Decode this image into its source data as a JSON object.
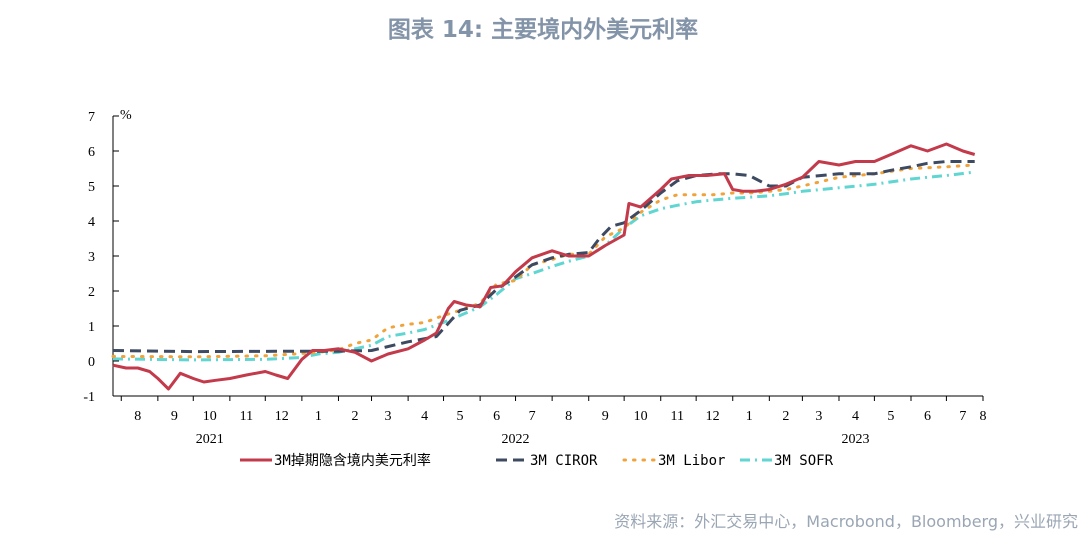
{
  "chart_data": {
    "type": "line",
    "title": "图表 14: 主要境内外美元利率",
    "ylabel": "%",
    "ylim": [
      -1,
      7
    ],
    "yticks": [
      -1,
      0,
      1,
      2,
      3,
      4,
      5,
      6,
      7
    ],
    "x_range": [
      "2021-07-25",
      "2023-08-01"
    ],
    "x_tick_labels": [
      "8",
      "9",
      "10",
      "11",
      "12",
      "1",
      "2",
      "3",
      "4",
      "5",
      "6",
      "7",
      "8",
      "9",
      "10",
      "11",
      "12",
      "1",
      "2",
      "3",
      "4",
      "5",
      "6",
      "7",
      "8"
    ],
    "year_labels": [
      "2021",
      "2022",
      "2023"
    ],
    "grid": false,
    "legend_position": "bottom",
    "series": [
      {
        "name": "3M掉期隐含境内美元利率",
        "style": "solid",
        "color": "#c33a4b",
        "points": [
          [
            "2021-07-25",
            -0.12
          ],
          [
            "2021-08-05",
            -0.2
          ],
          [
            "2021-08-15",
            -0.2
          ],
          [
            "2021-08-25",
            -0.3
          ],
          [
            "2021-09-01",
            -0.5
          ],
          [
            "2021-09-10",
            -0.8
          ],
          [
            "2021-09-20",
            -0.35
          ],
          [
            "2021-10-01",
            -0.5
          ],
          [
            "2021-10-10",
            -0.6
          ],
          [
            "2021-10-20",
            -0.55
          ],
          [
            "2021-11-01",
            -0.5
          ],
          [
            "2021-11-15",
            -0.4
          ],
          [
            "2021-12-01",
            -0.3
          ],
          [
            "2021-12-10",
            -0.4
          ],
          [
            "2021-12-20",
            -0.5
          ],
          [
            "2022-01-01",
            0.05
          ],
          [
            "2022-01-10",
            0.3
          ],
          [
            "2022-01-20",
            0.3
          ],
          [
            "2022-02-01",
            0.35
          ],
          [
            "2022-02-15",
            0.25
          ],
          [
            "2022-03-01",
            0.0
          ],
          [
            "2022-03-15",
            0.2
          ],
          [
            "2022-04-01",
            0.35
          ],
          [
            "2022-04-15",
            0.6
          ],
          [
            "2022-04-25",
            0.8
          ],
          [
            "2022-05-05",
            1.5
          ],
          [
            "2022-05-10",
            1.7
          ],
          [
            "2022-05-20",
            1.6
          ],
          [
            "2022-06-01",
            1.55
          ],
          [
            "2022-06-10",
            2.1
          ],
          [
            "2022-06-20",
            2.15
          ],
          [
            "2022-07-01",
            2.55
          ],
          [
            "2022-07-15",
            2.95
          ],
          [
            "2022-08-01",
            3.15
          ],
          [
            "2022-08-15",
            3.0
          ],
          [
            "2022-09-01",
            3.0
          ],
          [
            "2022-09-15",
            3.3
          ],
          [
            "2022-10-01",
            3.6
          ],
          [
            "2022-10-05",
            4.5
          ],
          [
            "2022-10-15",
            4.4
          ],
          [
            "2022-11-01",
            4.9
          ],
          [
            "2022-11-10",
            5.2
          ],
          [
            "2022-11-25",
            5.3
          ],
          [
            "2022-12-10",
            5.3
          ],
          [
            "2022-12-25",
            5.35
          ],
          [
            "2023-01-01",
            4.9
          ],
          [
            "2023-01-10",
            4.85
          ],
          [
            "2023-01-20",
            4.85
          ],
          [
            "2023-02-01",
            4.9
          ],
          [
            "2023-02-15",
            5.05
          ],
          [
            "2023-03-01",
            5.25
          ],
          [
            "2023-03-15",
            5.7
          ],
          [
            "2023-04-01",
            5.6
          ],
          [
            "2023-04-15",
            5.7
          ],
          [
            "2023-05-01",
            5.7
          ],
          [
            "2023-05-15",
            5.9
          ],
          [
            "2023-06-01",
            6.15
          ],
          [
            "2023-06-15",
            6.0
          ],
          [
            "2023-07-01",
            6.2
          ],
          [
            "2023-07-15",
            6.0
          ],
          [
            "2023-07-25",
            5.9
          ]
        ]
      },
      {
        "name": "3M CIROR",
        "style": "dash",
        "color": "#3e4a61",
        "points": [
          [
            "2021-07-25",
            0.3
          ],
          [
            "2021-10-01",
            0.27
          ],
          [
            "2021-12-31",
            0.28
          ],
          [
            "2022-02-01",
            0.28
          ],
          [
            "2022-03-01",
            0.3
          ],
          [
            "2022-04-01",
            0.55
          ],
          [
            "2022-04-25",
            0.7
          ],
          [
            "2022-05-15",
            1.45
          ],
          [
            "2022-06-01",
            1.6
          ],
          [
            "2022-06-15",
            2.05
          ],
          [
            "2022-07-01",
            2.4
          ],
          [
            "2022-07-15",
            2.75
          ],
          [
            "2022-08-01",
            2.95
          ],
          [
            "2022-08-15",
            3.05
          ],
          [
            "2022-09-01",
            3.1
          ],
          [
            "2022-09-10",
            3.5
          ],
          [
            "2022-09-20",
            3.85
          ],
          [
            "2022-10-01",
            3.95
          ],
          [
            "2022-10-15",
            4.3
          ],
          [
            "2022-11-01",
            4.8
          ],
          [
            "2022-11-15",
            5.15
          ],
          [
            "2022-12-01",
            5.3
          ],
          [
            "2022-12-20",
            5.35
          ],
          [
            "2023-01-01",
            5.35
          ],
          [
            "2023-01-15",
            5.3
          ],
          [
            "2023-02-01",
            5.0
          ],
          [
            "2023-02-15",
            5.0
          ],
          [
            "2023-03-01",
            5.25
          ],
          [
            "2023-04-01",
            5.35
          ],
          [
            "2023-05-01",
            5.35
          ],
          [
            "2023-05-15",
            5.45
          ],
          [
            "2023-06-01",
            5.55
          ],
          [
            "2023-06-15",
            5.65
          ],
          [
            "2023-07-01",
            5.7
          ],
          [
            "2023-07-25",
            5.7
          ]
        ]
      },
      {
        "name": "3M Libor",
        "style": "dot",
        "color": "#f0a33a",
        "points": [
          [
            "2021-07-25",
            0.13
          ],
          [
            "2021-10-01",
            0.12
          ],
          [
            "2021-12-01",
            0.15
          ],
          [
            "2021-12-31",
            0.21
          ],
          [
            "2022-01-15",
            0.25
          ],
          [
            "2022-02-01",
            0.32
          ],
          [
            "2022-02-15",
            0.5
          ],
          [
            "2022-03-01",
            0.6
          ],
          [
            "2022-03-15",
            0.95
          ],
          [
            "2022-04-01",
            1.05
          ],
          [
            "2022-04-15",
            1.1
          ],
          [
            "2022-05-01",
            1.3
          ],
          [
            "2022-05-15",
            1.45
          ],
          [
            "2022-06-01",
            1.65
          ],
          [
            "2022-06-15",
            2.2
          ],
          [
            "2022-07-01",
            2.3
          ],
          [
            "2022-07-15",
            2.75
          ],
          [
            "2022-08-01",
            2.9
          ],
          [
            "2022-08-15",
            3.05
          ],
          [
            "2022-09-01",
            3.05
          ],
          [
            "2022-09-15",
            3.55
          ],
          [
            "2022-10-01",
            3.8
          ],
          [
            "2022-10-15",
            4.25
          ],
          [
            "2022-11-01",
            4.6
          ],
          [
            "2022-11-15",
            4.75
          ],
          [
            "2022-12-01",
            4.75
          ],
          [
            "2022-12-15",
            4.75
          ],
          [
            "2023-01-01",
            4.8
          ],
          [
            "2023-01-15",
            4.8
          ],
          [
            "2023-02-01",
            4.85
          ],
          [
            "2023-02-15",
            4.9
          ],
          [
            "2023-03-01",
            5.0
          ],
          [
            "2023-04-01",
            5.25
          ],
          [
            "2023-05-01",
            5.35
          ],
          [
            "2023-06-01",
            5.5
          ],
          [
            "2023-07-01",
            5.55
          ],
          [
            "2023-07-25",
            5.6
          ]
        ]
      },
      {
        "name": "3M SOFR",
        "style": "dashdot",
        "color": "#5fd6d1",
        "points": [
          [
            "2021-07-25",
            0.06
          ],
          [
            "2021-10-01",
            0.03
          ],
          [
            "2021-12-01",
            0.05
          ],
          [
            "2021-12-31",
            0.1
          ],
          [
            "2022-01-15",
            0.2
          ],
          [
            "2022-02-01",
            0.25
          ],
          [
            "2022-02-15",
            0.35
          ],
          [
            "2022-03-01",
            0.45
          ],
          [
            "2022-03-15",
            0.7
          ],
          [
            "2022-04-01",
            0.8
          ],
          [
            "2022-04-15",
            0.9
          ],
          [
            "2022-05-01",
            1.1
          ],
          [
            "2022-05-15",
            1.3
          ],
          [
            "2022-06-01",
            1.55
          ],
          [
            "2022-06-15",
            1.9
          ],
          [
            "2022-07-01",
            2.35
          ],
          [
            "2022-07-15",
            2.5
          ],
          [
            "2022-08-01",
            2.7
          ],
          [
            "2022-08-15",
            2.85
          ],
          [
            "2022-09-01",
            3.0
          ],
          [
            "2022-09-15",
            3.3
          ],
          [
            "2022-10-01",
            3.8
          ],
          [
            "2022-10-15",
            4.15
          ],
          [
            "2022-11-01",
            4.35
          ],
          [
            "2022-11-15",
            4.45
          ],
          [
            "2022-12-01",
            4.55
          ],
          [
            "2022-12-15",
            4.6
          ],
          [
            "2023-01-01",
            4.65
          ],
          [
            "2023-01-15",
            4.68
          ],
          [
            "2023-02-01",
            4.72
          ],
          [
            "2023-02-15",
            4.78
          ],
          [
            "2023-03-01",
            4.85
          ],
          [
            "2023-04-01",
            4.95
          ],
          [
            "2023-05-01",
            5.05
          ],
          [
            "2023-06-01",
            5.2
          ],
          [
            "2023-06-15",
            5.25
          ],
          [
            "2023-07-01",
            5.3
          ],
          [
            "2023-07-25",
            5.4
          ]
        ]
      }
    ]
  },
  "source": "资料来源：外汇交易中心，Macrobond，Bloomberg，兴业研究"
}
